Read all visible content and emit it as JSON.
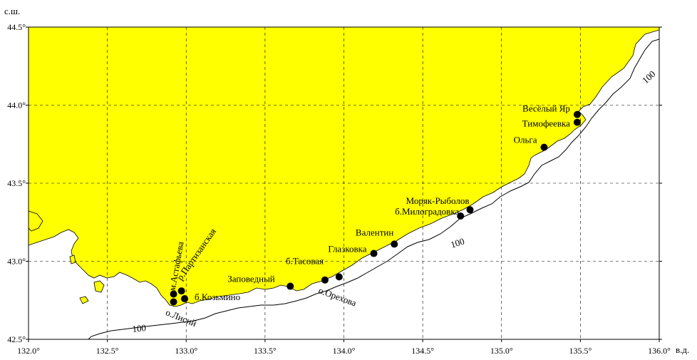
{
  "axes": {
    "lat_unit": "с.ш.",
    "lon_unit": "в.д.",
    "lat_ticks": [
      "44.5°",
      "44.0°",
      "43.5°",
      "43.0°",
      "42.5°"
    ],
    "lon_ticks": [
      "132.0°",
      "132.5°",
      "133.0°",
      "133.5°",
      "134.0°",
      "134.5°",
      "135.0°",
      "135.5°",
      "136.0°"
    ],
    "lon_range": [
      132.0,
      136.0
    ],
    "lat_range": [
      42.5,
      44.5
    ],
    "grid": "dashed"
  },
  "colors": {
    "land": "#ffff00",
    "sea": "#ffffff",
    "station": "#000000"
  },
  "isobath_label": "100",
  "stations": [
    {
      "name": "Весёлый Яр",
      "lon": 135.48,
      "lat": 43.94
    },
    {
      "name": "Тимофеевка",
      "lon": 135.48,
      "lat": 43.89
    },
    {
      "name": "Ольга",
      "lon": 135.27,
      "lat": 43.73
    },
    {
      "name": "Моряк-Рыболов",
      "lon": 134.8,
      "lat": 43.33
    },
    {
      "name": "б.Милоградовка",
      "lon": 134.74,
      "lat": 43.29
    },
    {
      "name": "Валентин",
      "lon": 134.32,
      "lat": 43.11
    },
    {
      "name": "Глазковка",
      "lon": 134.19,
      "lat": 43.05
    },
    {
      "name": "б.Тасовая",
      "lon": 133.97,
      "lat": 42.9
    },
    {
      "name": "о.Орехова",
      "lon": 133.88,
      "lat": 42.88
    },
    {
      "name": "Заповедный",
      "lon": 133.66,
      "lat": 42.84
    },
    {
      "name": "р.Партизанская",
      "lon": 132.97,
      "lat": 42.81
    },
    {
      "name": "м.Астафьева",
      "lon": 132.92,
      "lat": 42.79
    },
    {
      "name": "б.Козьмино",
      "lon": 132.99,
      "lat": 42.76
    },
    {
      "name": "о.Лисий",
      "lon": 132.92,
      "lat": 42.74
    }
  ]
}
